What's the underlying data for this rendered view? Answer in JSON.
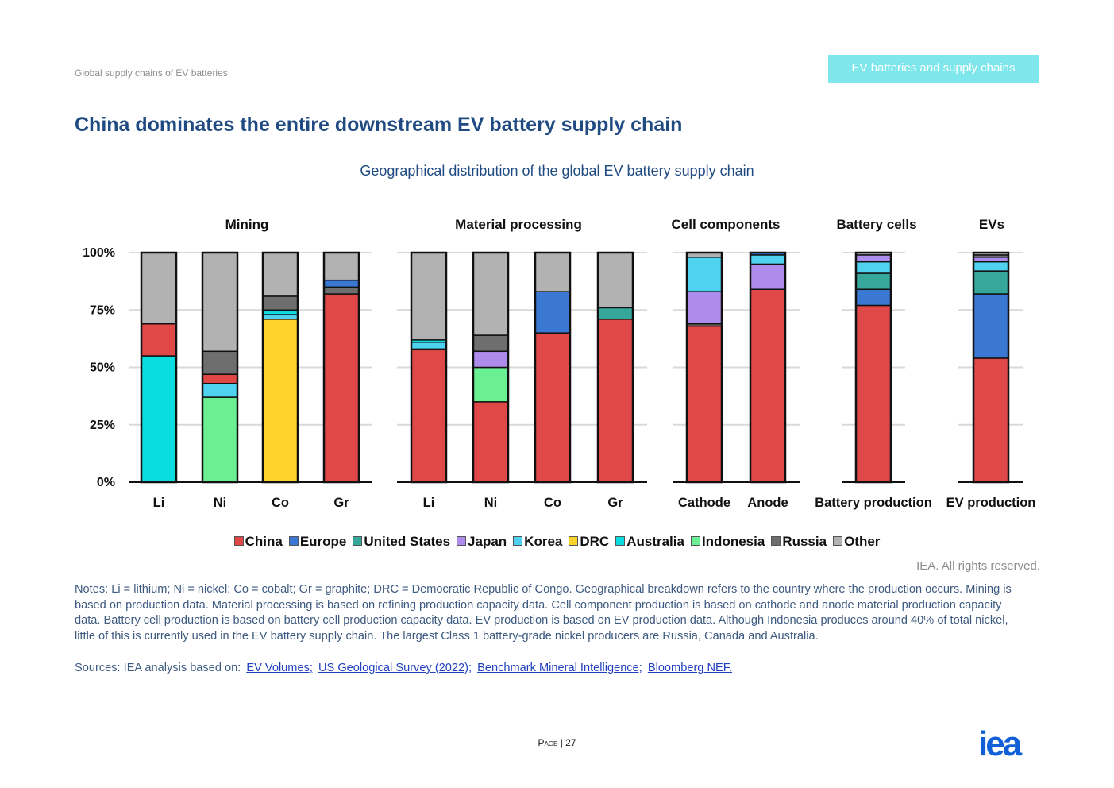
{
  "header": {
    "breadcrumb": "Global supply chains of EV batteries",
    "section_tag": "EV batteries and supply chains"
  },
  "page_title": "China dominates the entire downstream EV battery supply chain",
  "chart_data": {
    "type": "bar",
    "stacked": true,
    "title": "Geographical distribution of the global EV battery supply chain",
    "y_ticks": [
      "0%",
      "25%",
      "50%",
      "75%",
      "100%"
    ],
    "ylim": [
      0,
      100
    ],
    "grid": true,
    "legend_position": "bottom",
    "series_names": [
      "China",
      "Europe",
      "United States",
      "Japan",
      "Korea",
      "DRC",
      "Australia",
      "Indonesia",
      "Russia",
      "Other"
    ],
    "colors": {
      "China": "#e04848",
      "Europe": "#3b78d4",
      "United States": "#36a89b",
      "Japan": "#ad8cec",
      "Korea": "#4fd1f0",
      "DRC": "#fdd22b",
      "Australia": "#0bdcdf",
      "Indonesia": "#6bef93",
      "Russia": "#6e6e6e",
      "Other": "#b2b2b2"
    },
    "groups": [
      {
        "name": "Mining",
        "bars": [
          {
            "label": "Li",
            "segments": {
              "Australia": 55,
              "China": 14,
              "Other": 31
            }
          },
          {
            "label": "Ni",
            "segments": {
              "Indonesia": 37,
              "Korea": 6,
              "China": 4,
              "Russia": 10,
              "Other": 43
            }
          },
          {
            "label": "Co",
            "segments": {
              "DRC": 71,
              "Korea": 2,
              "Australia": 2,
              "Russia": 6,
              "Other": 19
            }
          },
          {
            "label": "Gr",
            "segments": {
              "China": 82,
              "Russia": 3,
              "Europe": 3,
              "Other": 12
            }
          }
        ]
      },
      {
        "name": "Material processing",
        "bars": [
          {
            "label": "Li",
            "segments": {
              "China": 58,
              "Korea": 3,
              "Australia": 1,
              "Other": 38
            }
          },
          {
            "label": "Ni",
            "segments": {
              "China": 35,
              "Indonesia": 15,
              "Japan": 7,
              "Russia": 7,
              "Other": 36
            }
          },
          {
            "label": "Co",
            "segments": {
              "China": 65,
              "Europe": 18,
              "Other": 17
            }
          },
          {
            "label": "Gr",
            "segments": {
              "China": 71,
              "United States": 5,
              "Other": 24
            }
          }
        ]
      },
      {
        "name": "Cell components",
        "bars": [
          {
            "label": "Cathode",
            "segments": {
              "China": 68,
              "Russia": 1,
              "Japan": 14,
              "Korea": 15,
              "Other": 2
            }
          },
          {
            "label": "Anode",
            "segments": {
              "China": 84,
              "Japan": 11,
              "Korea": 4,
              "Europe": 1
            }
          }
        ]
      },
      {
        "name": "Battery cells",
        "bars": [
          {
            "label": "Battery production",
            "segments": {
              "China": 77,
              "Europe": 7,
              "United States": 7,
              "Korea": 5,
              "Japan": 3,
              "Other": 1
            }
          }
        ]
      },
      {
        "name": "EVs",
        "bars": [
          {
            "label": "EV production",
            "segments": {
              "China": 54,
              "Europe": 28,
              "United States": 10,
              "Korea": 4,
              "Japan": 2,
              "Russia": 1,
              "Other": 1
            }
          }
        ]
      }
    ]
  },
  "copyright": "IEA. All rights reserved.",
  "notes": "Notes: Li = lithium; Ni = nickel; Co = cobalt; Gr = graphite; DRC = Democratic Republic of Congo. Geographical breakdown refers to the country where the production occurs. Mining is based on production data. Material processing is based on refining production capacity data. Cell component production is based on cathode and anode material production capacity data. Battery cell production is based on battery cell production capacity data. EV production is based on EV production data. Although Indonesia produces around 40% of total nickel, little of this is currently used in the EV battery supply chain. The largest Class 1 battery-grade nickel producers are Russia, Canada and Australia.",
  "sources": {
    "prefix": "Sources: IEA analysis based on:",
    "links": [
      "EV Volumes;",
      "US Geological Survey (2022);",
      "Benchmark Mineral Intelligence;",
      "Bloomberg NEF."
    ]
  },
  "footer": {
    "page_label": "Page",
    "page_number": "| 27",
    "logo": "iea"
  }
}
